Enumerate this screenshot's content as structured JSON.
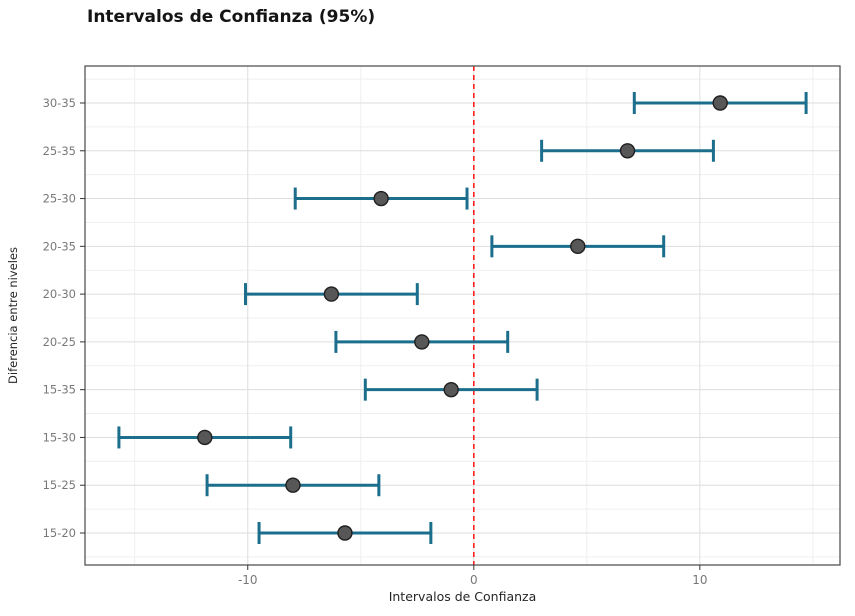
{
  "title": "Intervalos de Confianza (95%)",
  "chart_data": {
    "type": "errorbar",
    "orientation": "horizontal",
    "title": "Intervalos de Confianza (95%)",
    "xlabel": "Intervalos de Confianza",
    "ylabel": "Diferencia entre niveles",
    "categories": [
      "30-35",
      "25-35",
      "25-30",
      "20-35",
      "20-30",
      "20-25",
      "15-35",
      "15-30",
      "15-25",
      "15-20"
    ],
    "points": [
      {
        "label": "30-35",
        "mean": 10.9,
        "lo": 7.1,
        "hi": 14.7
      },
      {
        "label": "25-35",
        "mean": 6.8,
        "lo": 3.0,
        "hi": 10.6
      },
      {
        "label": "25-30",
        "mean": -4.1,
        "lo": -7.9,
        "hi": -0.3
      },
      {
        "label": "20-35",
        "mean": 4.6,
        "lo": 0.8,
        "hi": 8.4
      },
      {
        "label": "20-30",
        "mean": -6.3,
        "lo": -10.1,
        "hi": -2.5
      },
      {
        "label": "20-25",
        "mean": -2.3,
        "lo": -6.1,
        "hi": 1.5
      },
      {
        "label": "15-35",
        "mean": -1.0,
        "lo": -4.8,
        "hi": 2.8
      },
      {
        "label": "15-30",
        "mean": -11.9,
        "lo": -15.7,
        "hi": -8.1
      },
      {
        "label": "15-25",
        "mean": -8.0,
        "lo": -11.8,
        "hi": -4.2
      },
      {
        "label": "15-20",
        "mean": -5.7,
        "lo": -9.5,
        "hi": -1.9
      }
    ],
    "xlim": [
      -17.2,
      16.2
    ],
    "x_major_ticks": [
      -10,
      0,
      10
    ],
    "x_tick_labels": [
      "-10",
      "0",
      "10"
    ],
    "x_minor_ticks": [
      -15,
      -5,
      5,
      15
    ],
    "reference_line": {
      "x": 0,
      "style": "dashed"
    },
    "grid": true,
    "legend": "none",
    "colors": {
      "bar": "#1b6e8c",
      "point_fill": "#575757",
      "point_stroke": "#1f1f1f",
      "grid_major": "#dedede",
      "grid_minor": "#efefef",
      "refline": "#ff1f1f",
      "panel_border": "#545454",
      "tick": "#333333",
      "tick_label": "#787878",
      "background": "#ffffff"
    }
  }
}
